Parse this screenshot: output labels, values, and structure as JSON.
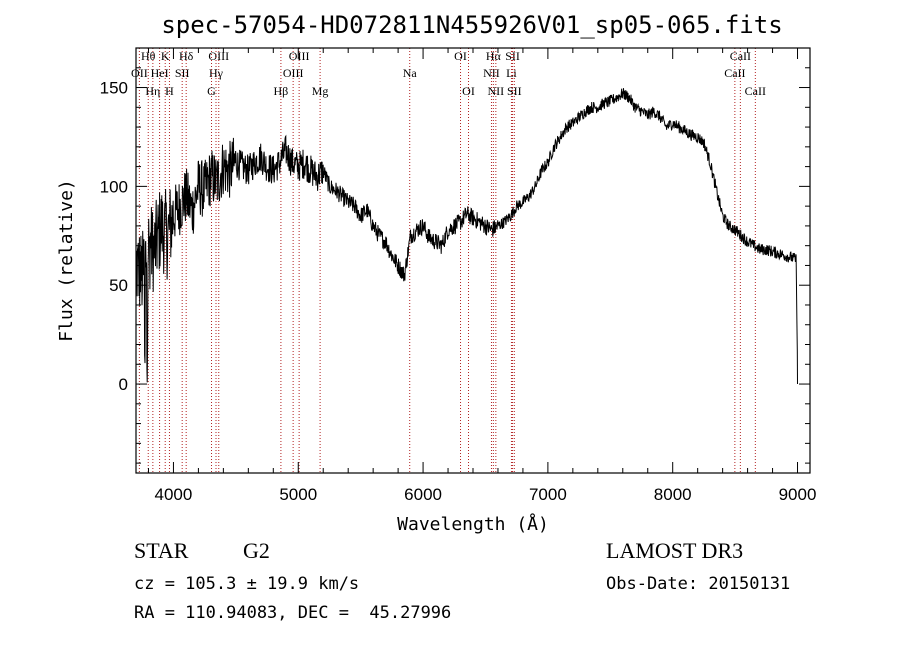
{
  "chart_data": {
    "type": "line",
    "title": "spec-57054-HD072811N455926V01_sp05-065.fits",
    "xlabel": "Wavelength (Å)",
    "ylabel": "Flux (relative)",
    "xlim": [
      3700,
      9100
    ],
    "ylim": [
      -45,
      170
    ],
    "xticks": [
      4000,
      5000,
      6000,
      7000,
      8000,
      9000
    ],
    "yticks": [
      0,
      50,
      100,
      150
    ],
    "minor_x_step": 200,
    "minor_y_step": 10,
    "grid": false,
    "line_color": "#000000",
    "marker_color": "#b22222",
    "series": [
      {
        "name": "flux",
        "x": [
          3700,
          3750,
          3800,
          3850,
          3900,
          3950,
          4000,
          4050,
          4100,
          4150,
          4200,
          4250,
          4300,
          4350,
          4400,
          4450,
          4500,
          4550,
          4600,
          4650,
          4700,
          4750,
          4800,
          4850,
          4900,
          4950,
          5000,
          5050,
          5100,
          5150,
          5200,
          5250,
          5300,
          5350,
          5400,
          5450,
          5500,
          5550,
          5600,
          5650,
          5700,
          5750,
          5800,
          5850,
          5900,
          5950,
          6000,
          6050,
          6100,
          6150,
          6200,
          6250,
          6300,
          6350,
          6400,
          6450,
          6500,
          6550,
          6600,
          6650,
          6700,
          6750,
          6800,
          6850,
          6900,
          6950,
          7000,
          7050,
          7100,
          7150,
          7200,
          7250,
          7300,
          7350,
          7400,
          7450,
          7500,
          7550,
          7600,
          7650,
          7700,
          7750,
          7800,
          7850,
          7900,
          7950,
          8000,
          8050,
          8100,
          8150,
          8200,
          8250,
          8300,
          8350,
          8400,
          8450,
          8500,
          8550,
          8600,
          8650,
          8700,
          8750,
          8800,
          8850,
          8900,
          8950,
          8990,
          9000
        ],
        "y": [
          60,
          55,
          70,
          68,
          80,
          75,
          85,
          90,
          95,
          88,
          100,
          98,
          105,
          102,
          110,
          108,
          112,
          110,
          108,
          112,
          115,
          110,
          108,
          112,
          118,
          112,
          110,
          112,
          108,
          105,
          108,
          100,
          98,
          95,
          92,
          90,
          85,
          88,
          80,
          75,
          72,
          65,
          60,
          55,
          75,
          78,
          80,
          74,
          72,
          70,
          78,
          80,
          82,
          86,
          84,
          82,
          80,
          78,
          80,
          82,
          85,
          90,
          92,
          95,
          100,
          108,
          112,
          120,
          125,
          130,
          132,
          135,
          138,
          140,
          140,
          142,
          143,
          145,
          147,
          145,
          140,
          138,
          136,
          138,
          135,
          130,
          132,
          130,
          128,
          126,
          125,
          122,
          112,
          98,
          85,
          80,
          78,
          75,
          72,
          70,
          68,
          68,
          67,
          66,
          65,
          64,
          63,
          5
        ]
      }
    ],
    "spectral_lines": [
      {
        "label": "Hθ",
        "x": 3798,
        "row": 1
      },
      {
        "label": "OII",
        "x": 3727,
        "row": 2
      },
      {
        "label": "Hη",
        "x": 3835,
        "row": 3
      },
      {
        "label": "HeI",
        "x": 3889,
        "row": 2
      },
      {
        "label": "K",
        "x": 3934,
        "row": 1
      },
      {
        "label": "H",
        "x": 3968,
        "row": 3
      },
      {
        "label": "SII",
        "x": 4070,
        "row": 2
      },
      {
        "label": "Hδ",
        "x": 4102,
        "row": 1
      },
      {
        "label": "OIII",
        "x": 4363,
        "row": 1
      },
      {
        "label": "Hγ",
        "x": 4341,
        "row": 2
      },
      {
        "label": "G",
        "x": 4305,
        "row": 3
      },
      {
        "label": "Hβ",
        "x": 4861,
        "row": 3
      },
      {
        "label": "OIII",
        "x": 5007,
        "row": 1
      },
      {
        "label": "OIII",
        "x": 4959,
        "row": 2
      },
      {
        "label": "Mg",
        "x": 5175,
        "row": 3
      },
      {
        "label": "Na",
        "x": 5893,
        "row": 2
      },
      {
        "label": "OI",
        "x": 6300,
        "row": 1
      },
      {
        "label": "OI",
        "x": 6364,
        "row": 3
      },
      {
        "label": "Hα",
        "x": 6563,
        "row": 1
      },
      {
        "label": "NII",
        "x": 6548,
        "row": 2
      },
      {
        "label": "NII",
        "x": 6583,
        "row": 3
      },
      {
        "label": "SII",
        "x": 6717,
        "row": 1
      },
      {
        "label": "Li",
        "x": 6708,
        "row": 2
      },
      {
        "label": "SII",
        "x": 6731,
        "row": 3
      },
      {
        "label": "CaII",
        "x": 8542,
        "row": 1
      },
      {
        "label": "CaII",
        "x": 8498,
        "row": 2
      },
      {
        "label": "CaII",
        "x": 8662,
        "row": 3
      }
    ]
  },
  "info": {
    "object_class": "STAR",
    "subclass": "G2",
    "survey": "LAMOST DR3",
    "cz": "cz = 105.3 ± 19.9 km/s",
    "obs_date": "Obs-Date: 20150131",
    "coords": "RA = 110.94083, DEC =  45.27996"
  }
}
